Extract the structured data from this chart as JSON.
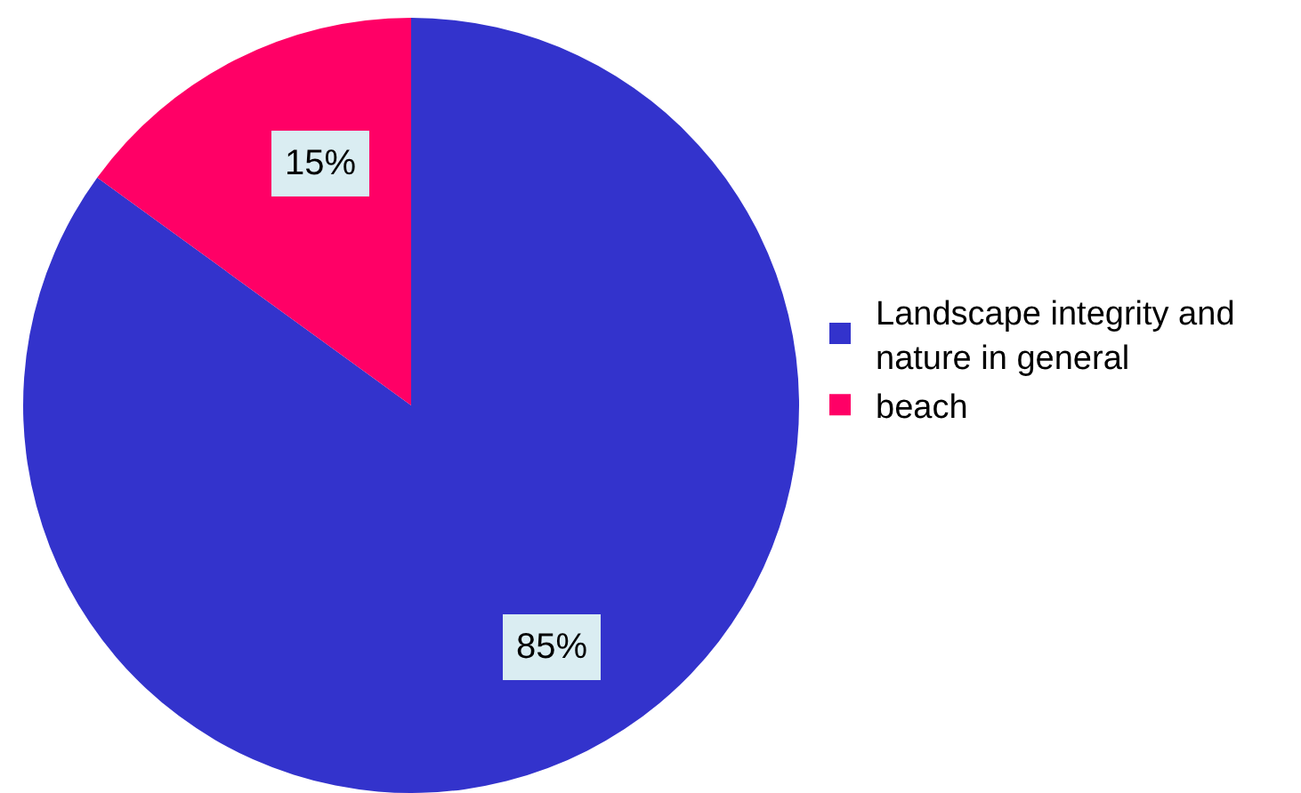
{
  "chart_data": {
    "type": "pie",
    "categories": [
      "Landscape integrity and nature in general",
      "beach"
    ],
    "values": [
      85,
      15
    ],
    "colors": [
      "#3333cc",
      "#ff0066"
    ],
    "value_labels": [
      "85%",
      "15%"
    ],
    "legend": "right"
  }
}
